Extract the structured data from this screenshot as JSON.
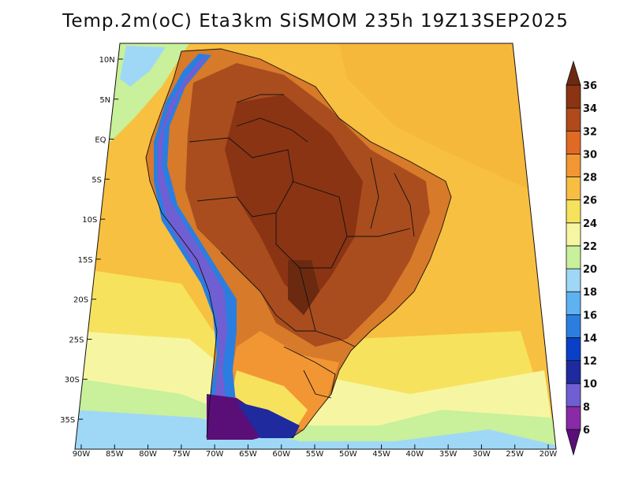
{
  "title": "Temp.2m(oC) Eta3km SiSMOM 235h 19Z13SEP2025",
  "map": {
    "variable": "2 m temperature",
    "units": "oC",
    "region": "South America",
    "lon_range": [
      -90,
      -20
    ],
    "lat_range": [
      -38,
      12
    ],
    "lat_labels": [
      "10N",
      "5N",
      "EQ",
      "5S",
      "10S",
      "15S",
      "20S",
      "25S",
      "30S",
      "35S"
    ],
    "lat_values": [
      10,
      5,
      0,
      -5,
      -10,
      -15,
      -20,
      -25,
      -30,
      -35
    ],
    "lon_labels": [
      "90W",
      "85W",
      "80W",
      "75W",
      "70W",
      "65W",
      "60W",
      "55W",
      "50W",
      "45W",
      "40W",
      "35W",
      "30W",
      "25W",
      "20W"
    ],
    "lon_values": [
      -90,
      -85,
      -80,
      -75,
      -70,
      -65,
      -60,
      -55,
      -50,
      -45,
      -40,
      -35,
      -30,
      -25,
      -20
    ]
  },
  "colorbar": {
    "levels": [
      6,
      8,
      10,
      12,
      14,
      16,
      18,
      20,
      22,
      24,
      26,
      28,
      30,
      32,
      34,
      36
    ],
    "labels": [
      "6",
      "8",
      "10",
      "12",
      "14",
      "16",
      "18",
      "20",
      "22",
      "24",
      "26",
      "28",
      "30",
      "32",
      "34",
      "36"
    ],
    "colors": [
      "#5a0f78",
      "#8a2aa6",
      "#6f5fd3",
      "#1e2a9e",
      "#0a3fc8",
      "#2b7ee0",
      "#5fb2f2",
      "#9fd8f6",
      "#c9f09a",
      "#f6f6a2",
      "#f7e25e",
      "#f8be42",
      "#f29633",
      "#e06a24",
      "#b04a1a",
      "#8a3414",
      "#6b2a10"
    ]
  }
}
